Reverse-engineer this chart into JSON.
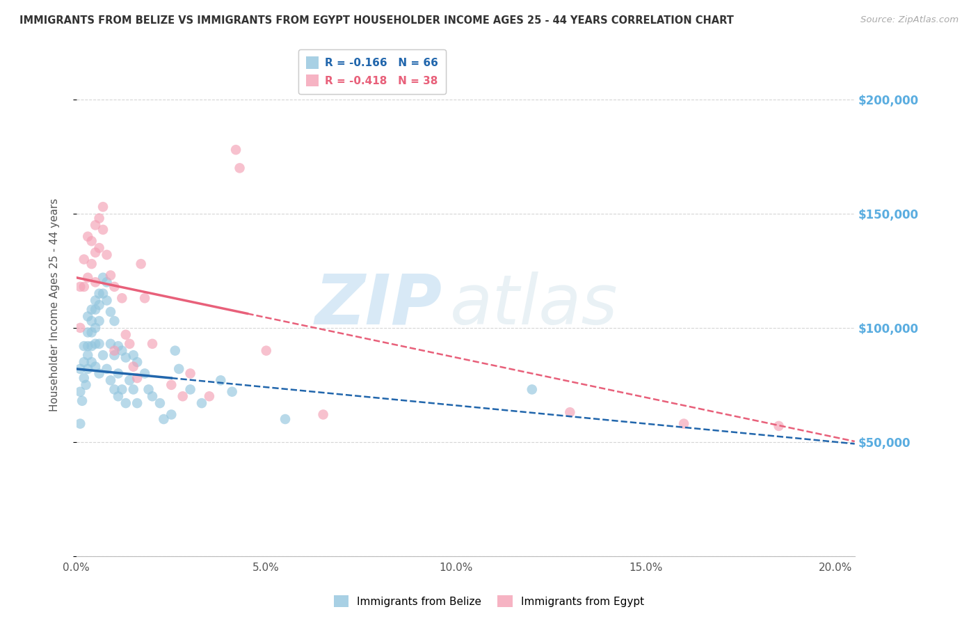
{
  "title": "IMMIGRANTS FROM BELIZE VS IMMIGRANTS FROM EGYPT HOUSEHOLDER INCOME AGES 25 - 44 YEARS CORRELATION CHART",
  "source": "Source: ZipAtlas.com",
  "ylabel": "Householder Income Ages 25 - 44 years",
  "xlim": [
    0.0,
    0.205
  ],
  "ylim": [
    0,
    220000
  ],
  "ytick_values": [
    0,
    50000,
    100000,
    150000,
    200000
  ],
  "right_ytick_labels": [
    "",
    "$50,000",
    "$100,000",
    "$150,000",
    "$200,000"
  ],
  "legend_belize_R": "-0.166",
  "legend_belize_N": "66",
  "legend_egypt_R": "-0.418",
  "legend_egypt_N": "38",
  "color_belize": "#92c5de",
  "color_egypt": "#f4a0b5",
  "color_belize_line": "#2166ac",
  "color_egypt_line": "#e8607a",
  "watermark_zip": "ZIP",
  "watermark_atlas": "atlas",
  "belize_x": [
    0.001,
    0.001,
    0.001,
    0.0015,
    0.002,
    0.002,
    0.002,
    0.0025,
    0.003,
    0.003,
    0.003,
    0.003,
    0.003,
    0.004,
    0.004,
    0.004,
    0.004,
    0.004,
    0.005,
    0.005,
    0.005,
    0.005,
    0.005,
    0.006,
    0.006,
    0.006,
    0.006,
    0.006,
    0.007,
    0.007,
    0.007,
    0.008,
    0.008,
    0.008,
    0.009,
    0.009,
    0.009,
    0.01,
    0.01,
    0.01,
    0.011,
    0.011,
    0.011,
    0.012,
    0.012,
    0.013,
    0.013,
    0.014,
    0.015,
    0.015,
    0.016,
    0.016,
    0.018,
    0.019,
    0.02,
    0.022,
    0.023,
    0.025,
    0.026,
    0.027,
    0.03,
    0.033,
    0.038,
    0.041,
    0.055,
    0.12
  ],
  "belize_y": [
    82000,
    72000,
    58000,
    68000,
    92000,
    85000,
    78000,
    75000,
    105000,
    98000,
    92000,
    88000,
    82000,
    108000,
    103000,
    98000,
    92000,
    85000,
    112000,
    108000,
    100000,
    93000,
    83000,
    115000,
    110000,
    103000,
    93000,
    80000,
    122000,
    115000,
    88000,
    120000,
    112000,
    82000,
    107000,
    93000,
    77000,
    103000,
    88000,
    73000,
    92000,
    80000,
    70000,
    90000,
    73000,
    87000,
    67000,
    77000,
    88000,
    73000,
    85000,
    67000,
    80000,
    73000,
    70000,
    67000,
    60000,
    62000,
    90000,
    82000,
    73000,
    67000,
    77000,
    72000,
    60000,
    73000
  ],
  "egypt_x": [
    0.001,
    0.001,
    0.002,
    0.002,
    0.003,
    0.003,
    0.004,
    0.004,
    0.005,
    0.005,
    0.005,
    0.006,
    0.006,
    0.007,
    0.007,
    0.008,
    0.009,
    0.01,
    0.01,
    0.012,
    0.013,
    0.014,
    0.015,
    0.016,
    0.017,
    0.018,
    0.02,
    0.025,
    0.028,
    0.03,
    0.035,
    0.042,
    0.043,
    0.05,
    0.065,
    0.13,
    0.16,
    0.185
  ],
  "egypt_y": [
    118000,
    100000,
    130000,
    118000,
    140000,
    122000,
    138000,
    128000,
    145000,
    133000,
    120000,
    148000,
    135000,
    153000,
    143000,
    132000,
    123000,
    118000,
    90000,
    113000,
    97000,
    93000,
    83000,
    78000,
    128000,
    113000,
    93000,
    75000,
    70000,
    80000,
    70000,
    178000,
    170000,
    90000,
    62000,
    63000,
    58000,
    57000
  ]
}
